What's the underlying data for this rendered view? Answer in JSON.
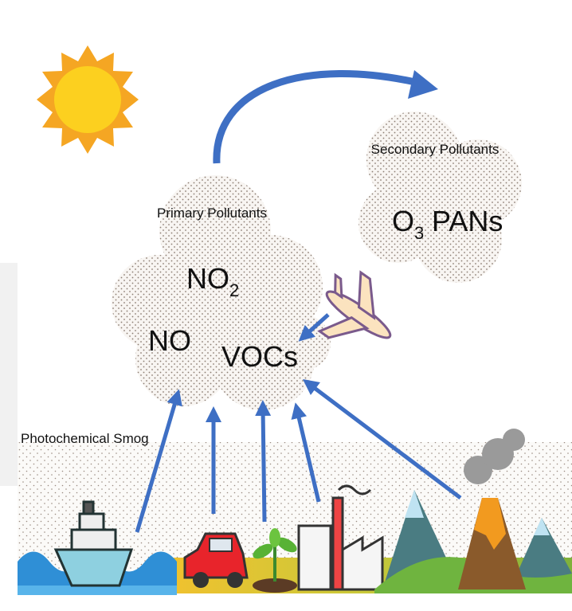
{
  "diagram": {
    "primary": {
      "title": "Primary Pollutants",
      "items": [
        {
          "text": "NO",
          "sub": "2"
        },
        {
          "text": "NO"
        },
        {
          "text": "VOCs"
        }
      ]
    },
    "secondary": {
      "title": "Secondary Pollutants",
      "items": [
        {
          "text": "O",
          "sub": "3"
        },
        {
          "text": "PANs"
        }
      ]
    },
    "smog_label": "Photochemical Smog"
  }
}
